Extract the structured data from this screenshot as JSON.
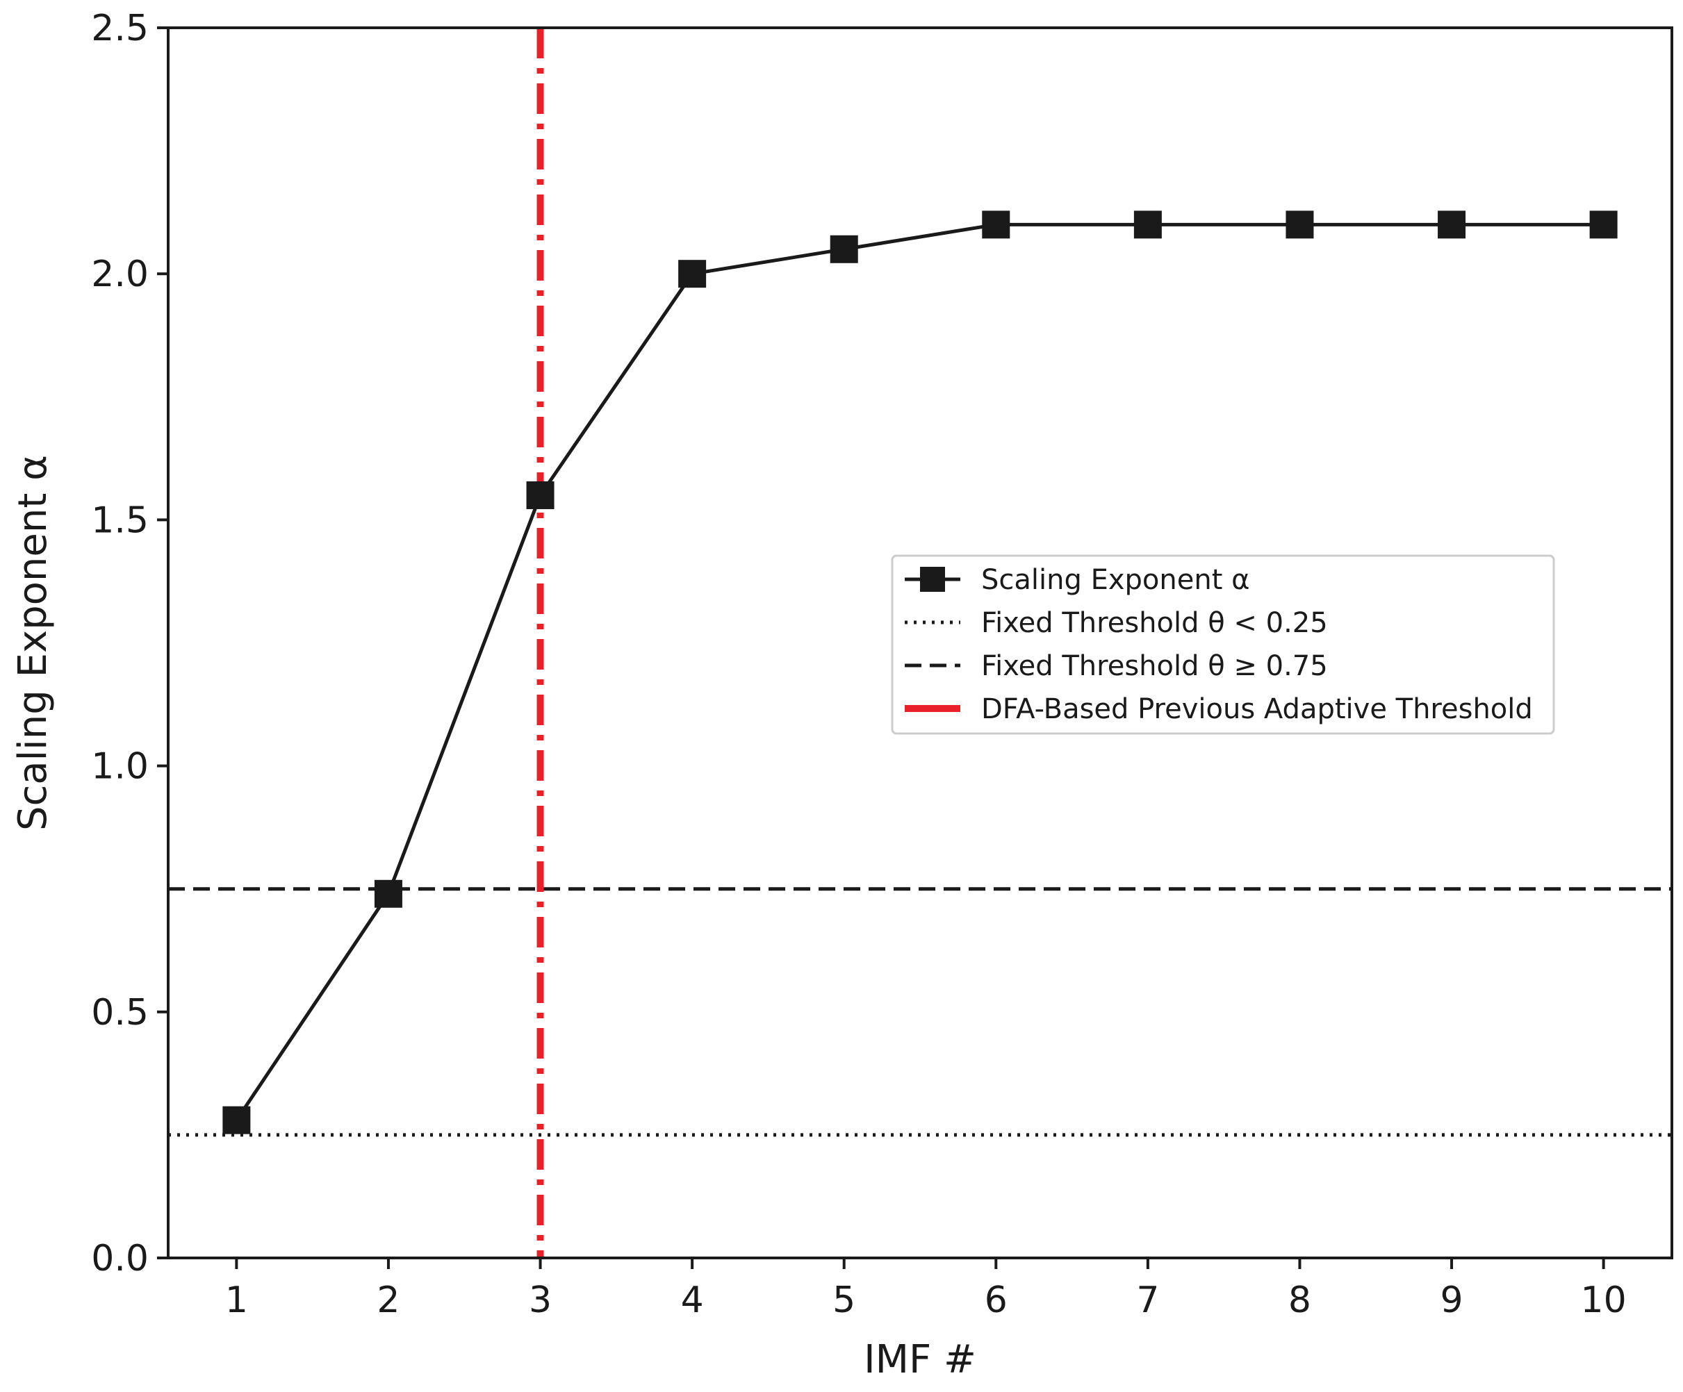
{
  "chart_data": {
    "type": "line",
    "xlabel": "IMF #",
    "ylabel": "Scaling Exponent α",
    "xlim": [
      0.55,
      10.45
    ],
    "ylim": [
      0.0,
      2.5
    ],
    "x_ticks": [
      1,
      2,
      3,
      4,
      5,
      6,
      7,
      8,
      9,
      10
    ],
    "x_tick_labels": [
      "1",
      "2",
      "3",
      "4",
      "5",
      "6",
      "7",
      "8",
      "9",
      "10"
    ],
    "y_ticks": [
      0.0,
      0.5,
      1.0,
      1.5,
      2.0,
      2.5
    ],
    "y_tick_labels": [
      "0.0",
      "0.5",
      "1.0",
      "1.5",
      "2.0",
      "2.5"
    ],
    "grid": false,
    "series": [
      {
        "name": "Scaling Exponent α",
        "x": [
          1,
          2,
          3,
          4,
          5,
          6,
          7,
          8,
          9,
          10
        ],
        "values": [
          0.28,
          0.74,
          1.55,
          2.0,
          2.05,
          2.1,
          2.1,
          2.1,
          2.1,
          2.1
        ],
        "color": "#1a1a1a",
        "marker": "square",
        "line_style": "solid"
      }
    ],
    "reference_lines": [
      {
        "name": "Fixed Threshold θ < 0.25",
        "orientation": "horizontal",
        "value": 0.25,
        "style": "dotted",
        "color": "#1a1a1a"
      },
      {
        "name": "Fixed Threshold θ ≥ 0.75",
        "orientation": "horizontal",
        "value": 0.75,
        "style": "dashed",
        "color": "#1a1a1a"
      },
      {
        "name": "DFA-Based Previous Adaptive Threshold",
        "orientation": "vertical",
        "value": 3,
        "style": "dashdot",
        "color": "#e8202a"
      }
    ],
    "legend": {
      "placement": "center-right",
      "entries": [
        {
          "label": "Scaling Exponent α",
          "style": "line-marker",
          "color": "#1a1a1a"
        },
        {
          "label": "Fixed Threshold θ < 0.25",
          "style": "dotted",
          "color": "#1a1a1a"
        },
        {
          "label": "Fixed Threshold θ ≥ 0.75",
          "style": "dashed",
          "color": "#1a1a1a"
        },
        {
          "label": "DFA-Based Previous Adaptive Threshold",
          "style": "solid-thick",
          "color": "#e8202a"
        }
      ]
    }
  }
}
